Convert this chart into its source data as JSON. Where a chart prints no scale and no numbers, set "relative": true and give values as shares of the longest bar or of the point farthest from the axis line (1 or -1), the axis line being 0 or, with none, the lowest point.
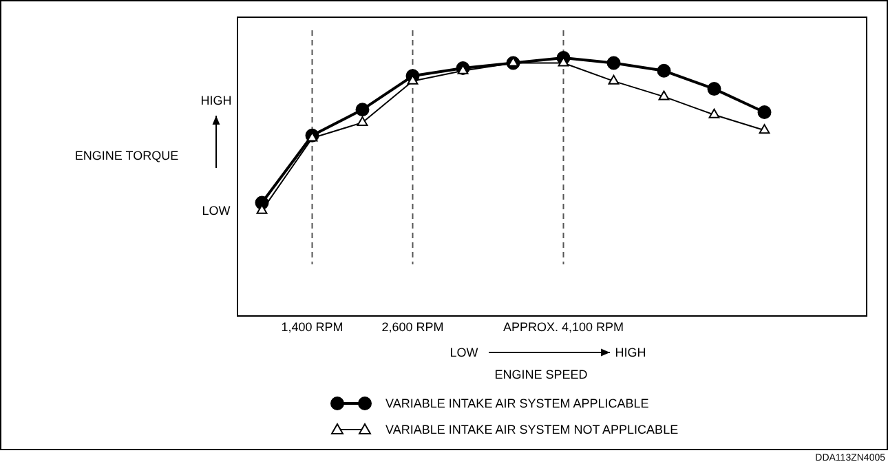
{
  "chart_data": {
    "type": "line",
    "relative": true,
    "xlabel": "ENGINE SPEED",
    "ylabel": "ENGINE TORQUE",
    "categories": [
      null,
      "1,400 RPM",
      null,
      "2,600 RPM",
      null,
      null,
      "APPROX. 4,100 RPM",
      null,
      null,
      null,
      null
    ],
    "series": [
      {
        "name": "VARIABLE INTAKE AIR SYSTEM APPLICABLE",
        "color": "#000000",
        "marker": "circle",
        "values": [
          0.44,
          0.7,
          0.8,
          0.93,
          0.96,
          0.98,
          1,
          0.98,
          0.95,
          0.88,
          0.79
        ]
      },
      {
        "name": "VARIABLE INTAKE AIR SYSTEM NOT APPLICABLE",
        "color": "#000000",
        "marker": "triangle",
        "values": [
          0.41,
          0.69,
          0.75,
          0.91,
          0.95,
          0.98,
          0.98,
          0.91,
          0.85,
          0.78,
          0.72
        ]
      }
    ],
    "ref_lines": [
      {
        "axis": "x",
        "value": "1,400 RPM",
        "color": "#555555",
        "line_style": "dashed"
      },
      {
        "axis": "x",
        "value": "2,600 RPM",
        "color": "#555555",
        "line_style": "dashed"
      },
      {
        "axis": "x",
        "value": "APPROX. 4,100 RPM",
        "color": "#555555",
        "line_style": "dashed"
      }
    ],
    "annotations": [
      "HIGH",
      "LOW",
      "LOW",
      "HIGH",
      "DDA113ZN4005"
    ],
    "legend": "bottom"
  }
}
